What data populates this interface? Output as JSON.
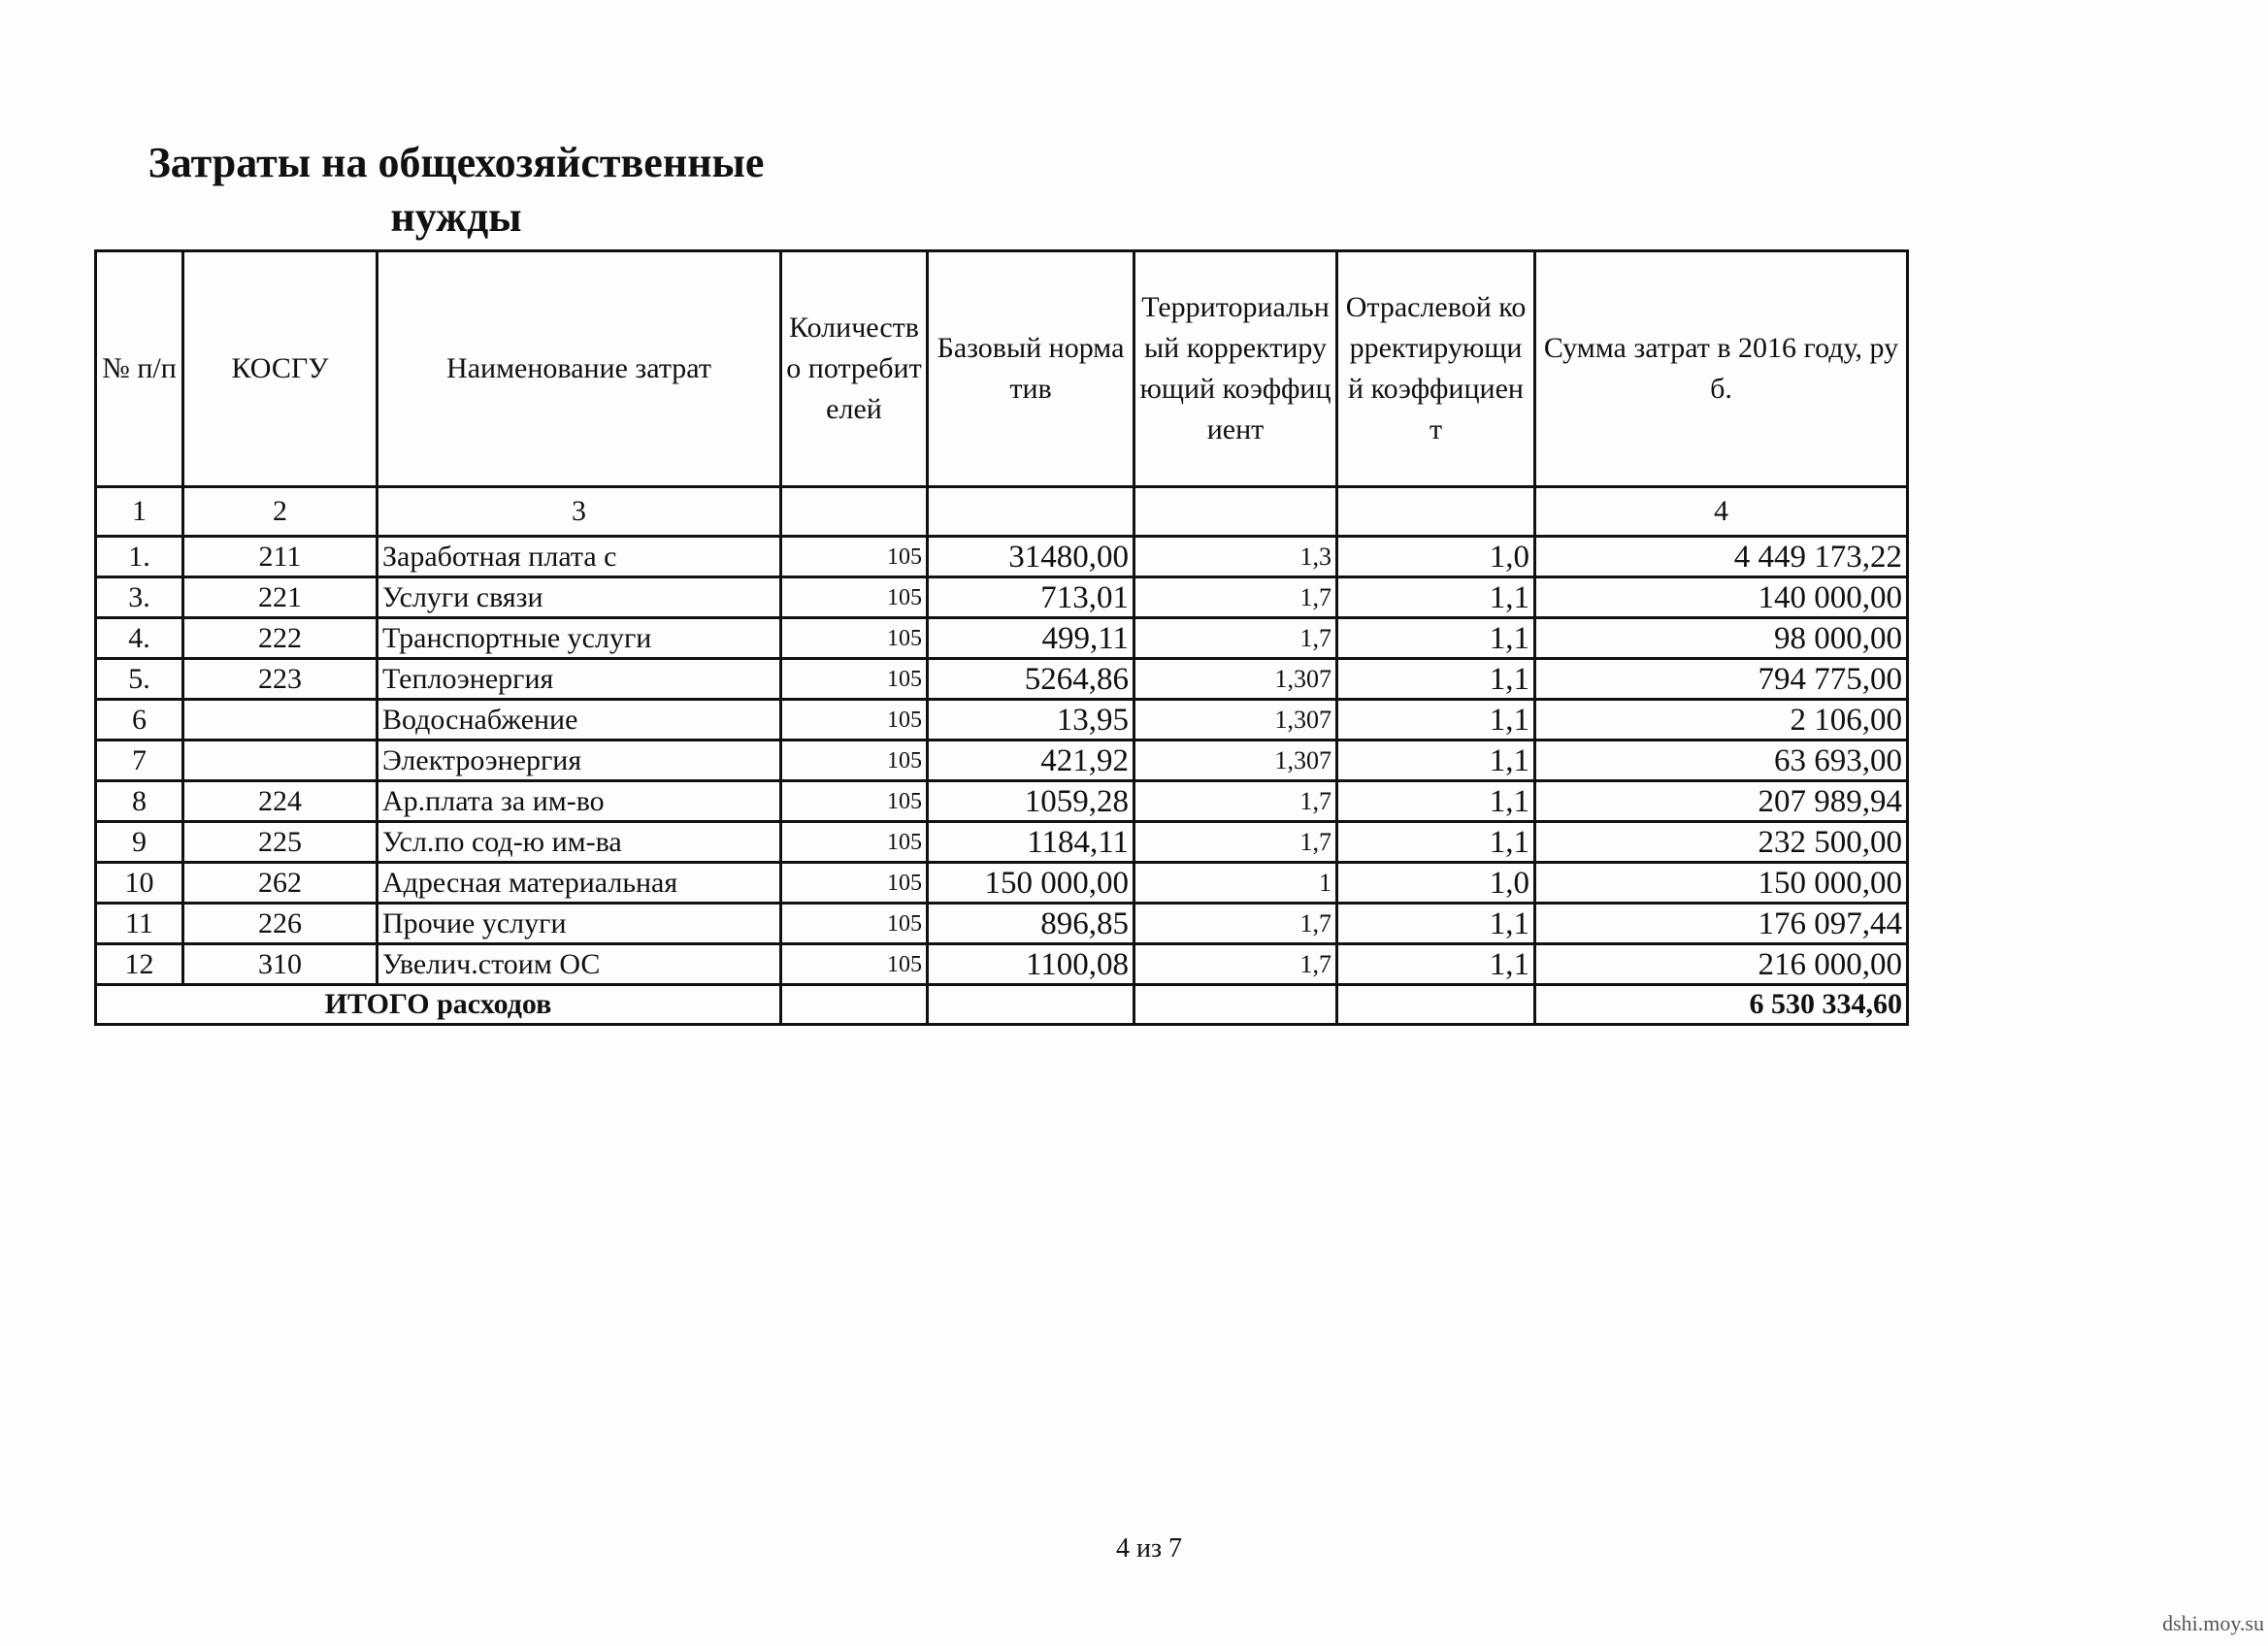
{
  "title": "Затраты на общехозяйственные нужды",
  "table": {
    "header": [
      "№ п/п",
      "КОСГУ",
      "Наименование затрат",
      "Количество потребителей",
      "Базовый норматив",
      "Территориальный корректирующий коэффициент",
      "Отраслевой корректирующий коэффициент",
      "Сумма затрат в 2016 году, руб."
    ],
    "column_numbers": [
      "1",
      "2",
      "3",
      "4"
    ],
    "rows": [
      [
        "1.",
        "211",
        "Заработная плата с",
        "105",
        "31480,00",
        "1,3",
        "1,0",
        "4 449 173,22"
      ],
      [
        "3.",
        "221",
        "Услуги связи",
        "105",
        "713,01",
        "1,7",
        "1,1",
        "140 000,00"
      ],
      [
        "4.",
        "222",
        "Транспортные услуги",
        "105",
        "499,11",
        "1,7",
        "1,1",
        "98 000,00"
      ],
      [
        "5.",
        "223",
        "Теплоэнергия",
        "105",
        "5264,86",
        "1,307",
        "1,1",
        "794 775,00"
      ],
      [
        "6",
        null,
        "Водоснабжение",
        "105",
        "13,95",
        "1,307",
        "1,1",
        "2 106,00"
      ],
      [
        "7",
        null,
        "Электроэнергия",
        "105",
        "421,92",
        "1,307",
        "1,1",
        "63 693,00"
      ],
      [
        "8",
        "224",
        "Ар.плата за им-во",
        "105",
        "1059,28",
        "1,7",
        "1,1",
        "207 989,94"
      ],
      [
        "9",
        "225",
        "Усл.по сод-ю им-ва",
        "105",
        "1184,11",
        "1,7",
        "1,1",
        "232 500,00"
      ],
      [
        "10",
        "262",
        "Адресная материальная",
        "105",
        "150 000,00",
        "1",
        "1,0",
        "150 000,00"
      ],
      [
        "11",
        "226",
        "Прочие услуги",
        "105",
        "896,85",
        "1,7",
        "1,1",
        "176 097,44"
      ],
      [
        "12",
        "310",
        "Увелич.стоим ОС",
        "105",
        "1100,08",
        "1,7",
        "1,1",
        "216 000,00"
      ]
    ],
    "total": {
      "label": "ИТОГО расходов",
      "value": "6 530 334,60"
    }
  },
  "page_number": "4 из 7",
  "watermark": "dshi.moy.su"
}
